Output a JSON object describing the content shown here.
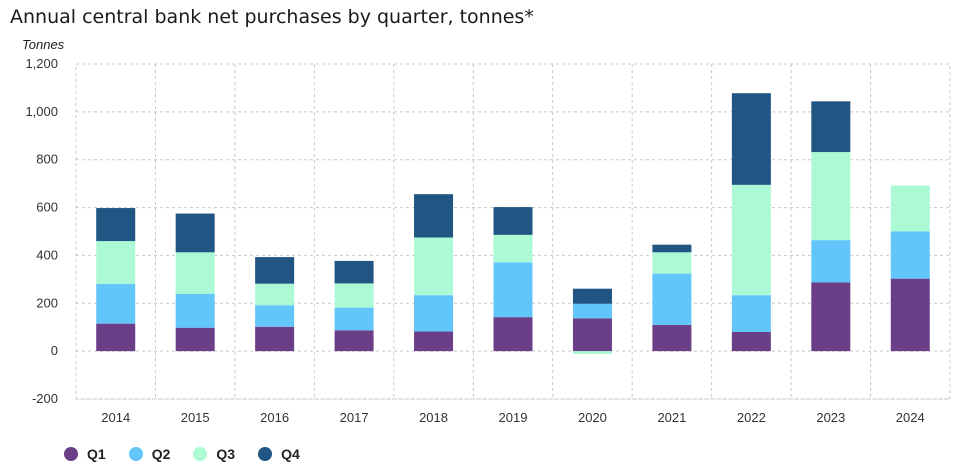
{
  "title": "Annual central bank net purchases by quarter, tonnes*",
  "chart_data": {
    "type": "bar",
    "stacked": true,
    "title": "Annual central bank net purchases by quarter, tonnes*",
    "ylabel": "Tonnes",
    "xlabel": "",
    "ylim": [
      -200,
      1200
    ],
    "yticks": [
      -200,
      0,
      200,
      400,
      600,
      800,
      1000,
      1200
    ],
    "ytick_labels": [
      "-200",
      "0",
      "200",
      "400",
      "600",
      "800",
      "1,000",
      "1,200"
    ],
    "categories": [
      "2014",
      "2015",
      "2016",
      "2017",
      "2018",
      "2019",
      "2020",
      "2021",
      "2022",
      "2023",
      "2024"
    ],
    "series": [
      {
        "name": "Q1",
        "color": "#6b3f87",
        "values": [
          115,
          98,
          102,
          87,
          82,
          142,
          137,
          110,
          80,
          287,
          303
        ]
      },
      {
        "name": "Q2",
        "color": "#62c6fb",
        "values": [
          166,
          142,
          90,
          95,
          152,
          229,
          61,
          214,
          154,
          177,
          197
        ]
      },
      {
        "name": "Q3",
        "color": "#abfad5",
        "values": [
          179,
          173,
          90,
          101,
          241,
          115,
          -12,
          89,
          461,
          368,
          192
        ]
      },
      {
        "name": "Q4",
        "color": "#215583",
        "values": [
          138,
          162,
          111,
          94,
          181,
          116,
          63,
          32,
          383,
          212,
          0
        ]
      }
    ],
    "grid": {
      "horizontal": true,
      "vertical": true,
      "style": "dashed"
    },
    "legend_position": "bottom-left"
  }
}
